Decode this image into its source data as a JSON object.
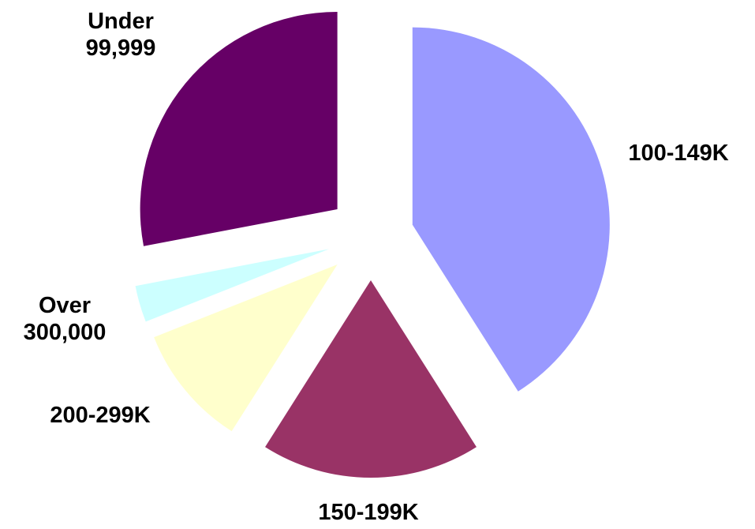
{
  "chart_data": {
    "type": "pie",
    "categories": [
      "100-149K",
      "150-199K",
      "200-299K",
      "Over 300,000",
      "Under 99,999"
    ],
    "values": [
      41,
      18,
      10,
      3,
      28
    ],
    "colors": [
      "#9999ff",
      "#993366",
      "#ffffcc",
      "#ccffff",
      "#660066"
    ],
    "exploded": true
  }
}
